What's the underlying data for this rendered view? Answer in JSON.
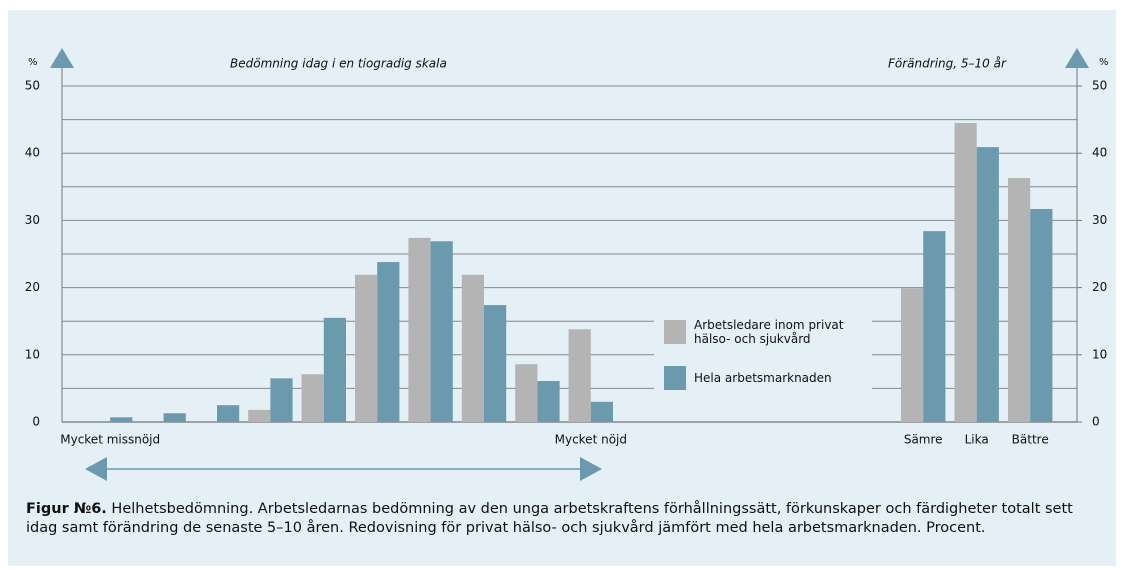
{
  "chart_data": [
    {
      "type": "bar",
      "subtitle": "Bedömning idag i en tiogradig skala",
      "y_label": "%",
      "categories": [
        "Mycket missnöjd",
        null,
        null,
        null,
        null,
        null,
        null,
        null,
        null,
        "Mycket nöjd"
      ],
      "series": [
        {
          "name": "Arbetsledare inom privat hälso- och sjukvård",
          "color": "#b4b4b4",
          "values": [
            0,
            0,
            0,
            1.8,
            7.1,
            21.9,
            27.4,
            21.9,
            8.6,
            13.8
          ]
        },
        {
          "name": "Hela arbetsmarknaden",
          "color": "#6b9aaf",
          "values": [
            0.7,
            1.3,
            2.5,
            6.5,
            15.5,
            23.8,
            26.9,
            17.4,
            6.1,
            3.0
          ]
        }
      ],
      "ylim": [
        0,
        50
      ],
      "yticks": [
        0,
        10,
        20,
        30,
        40,
        50
      ],
      "minor_yticks": [
        5,
        15,
        25,
        35,
        45
      ],
      "grid": true
    },
    {
      "type": "bar",
      "subtitle": "Förändring, 5–10 år",
      "y_label": "%",
      "categories": [
        "Sämre",
        "Lika",
        "Bättre"
      ],
      "series": [
        {
          "color": "#b4b4b4",
          "values": [
            19.9,
            44.5,
            36.3
          ]
        },
        {
          "color": "#6b9aaf",
          "values": [
            28.4,
            40.9,
            31.7
          ]
        }
      ],
      "ylim": [
        0,
        50
      ],
      "yticks": [
        0,
        10,
        20,
        30,
        40,
        50
      ]
    }
  ],
  "caption": {
    "label": "Figur №6.",
    "text": " Helhetsbedömning. Arbetsledarnas bedömning av den unga arbetskraftens förhållningssätt, förkunskaper och färdigheter totalt sett idag samt förändring de senaste 5–10 åren. Redovisning för privat hälso- och sjukvård jämfört med hela arbetsmarknaden. Procent."
  }
}
